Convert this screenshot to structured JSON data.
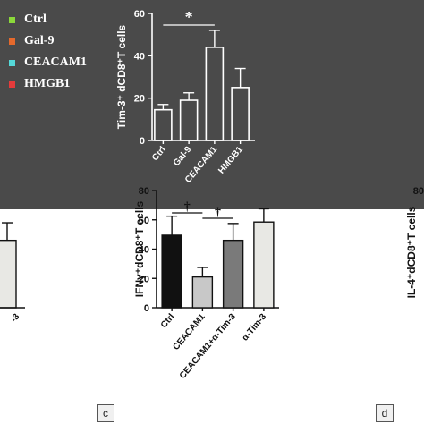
{
  "legend": {
    "items": [
      {
        "label": "Ctrl",
        "color": "#8bd93a"
      },
      {
        "label": "Gal-9",
        "color": "#e5692c"
      },
      {
        "label": "CEACAM1",
        "color": "#55d8d8"
      },
      {
        "label": "HMGB1",
        "color": "#e53b3b"
      }
    ]
  },
  "panel_letters": [
    "c",
    "d"
  ],
  "chart_data": [
    {
      "type": "bar",
      "ylabel": "Tim-3⁺ dCD8⁺T cells",
      "ylim": [
        0,
        60
      ],
      "yticks": [
        "0",
        "20",
        "40",
        "60"
      ],
      "categories": [
        "Ctrl",
        "Gal-9",
        "CEACAM1",
        "HMGB1"
      ],
      "values": [
        14.5,
        19,
        44,
        25
      ],
      "errors": [
        2.5,
        3.5,
        8,
        9
      ],
      "bar_color": "#ffffff",
      "significance": [
        {
          "from": 0,
          "to": 2,
          "label": "*"
        }
      ]
    },
    {
      "type": "bar",
      "ylabel": "IFNγ⁺dCD8⁺T cells",
      "ylim": [
        0,
        80
      ],
      "yticks": [
        "0",
        "20",
        "40",
        "60",
        "80"
      ],
      "categories": [
        "Ctrl",
        "CEACAM1",
        "CEACAM1+α-Tim-3",
        "α-Tim-3"
      ],
      "values": [
        49.5,
        21,
        46,
        58.5
      ],
      "errors": [
        13,
        6.5,
        11.5,
        9
      ],
      "bar_colors": [
        "#111111",
        "#c8c8c8",
        "#7a7a7a",
        "#e8e8e4"
      ],
      "significance": [
        {
          "from": 0,
          "to": 1,
          "label": "†"
        },
        {
          "from": 1,
          "to": 2,
          "label": "†"
        }
      ]
    },
    {
      "type": "bar",
      "partial": "left-edge",
      "ylim": [
        0,
        80
      ],
      "tick_fragment": "-3",
      "values": [
        46
      ],
      "errors": [
        12
      ],
      "bar_colors": [
        "#e8e8e4"
      ]
    },
    {
      "type": "bar",
      "partial": "right-edge",
      "ylabel": "IL-4⁺dCD8⁺T cells",
      "yticks": [
        "80"
      ]
    }
  ]
}
